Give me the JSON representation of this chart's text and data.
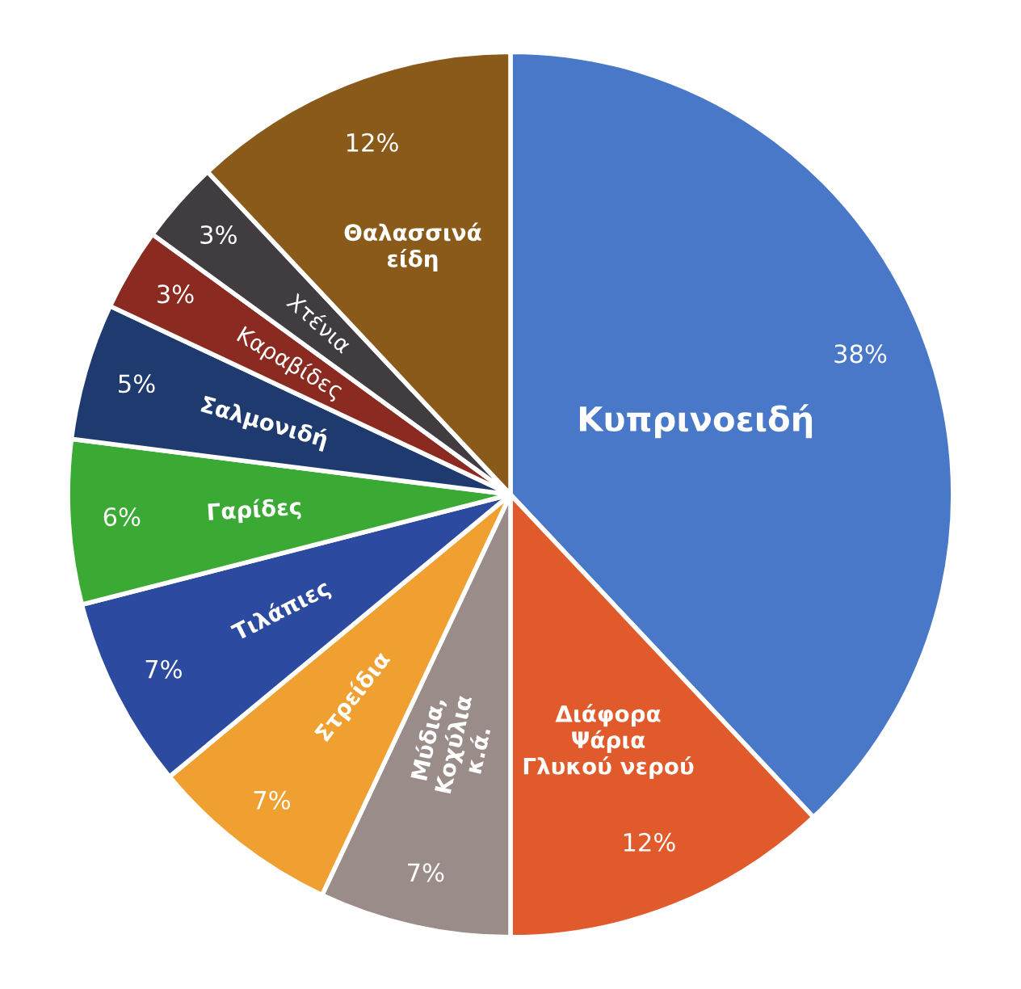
{
  "chart_data": {
    "type": "pie",
    "categories": [
      "Κυπρινοειδή",
      "Διάφορα\nΨάρια\nΓλυκού νερού",
      "Μύδια,\nΚοχύλια\nκ.ά.",
      "Στρείδια",
      "Τιλάπιες",
      "Γαρίδες",
      "Σαλμονιδή",
      "Καραβίδες",
      "Χτένια",
      "Θαλασσινά\nείδη"
    ],
    "values": [
      38,
      12,
      7,
      7,
      7,
      6,
      5,
      3,
      3,
      12
    ],
    "value_labels": [
      "38%",
      "12%",
      "7%",
      "7%",
      "7%",
      "6%",
      "5%",
      "3%",
      "3%",
      "12%"
    ],
    "colors": [
      "#4a78c8",
      "#e05a2b",
      "#9a8c88",
      "#f0a030",
      "#2c4aa0",
      "#3aaa35",
      "#1f3a6e",
      "#8a2a20",
      "#403c40",
      "#8a5a1a"
    ]
  }
}
